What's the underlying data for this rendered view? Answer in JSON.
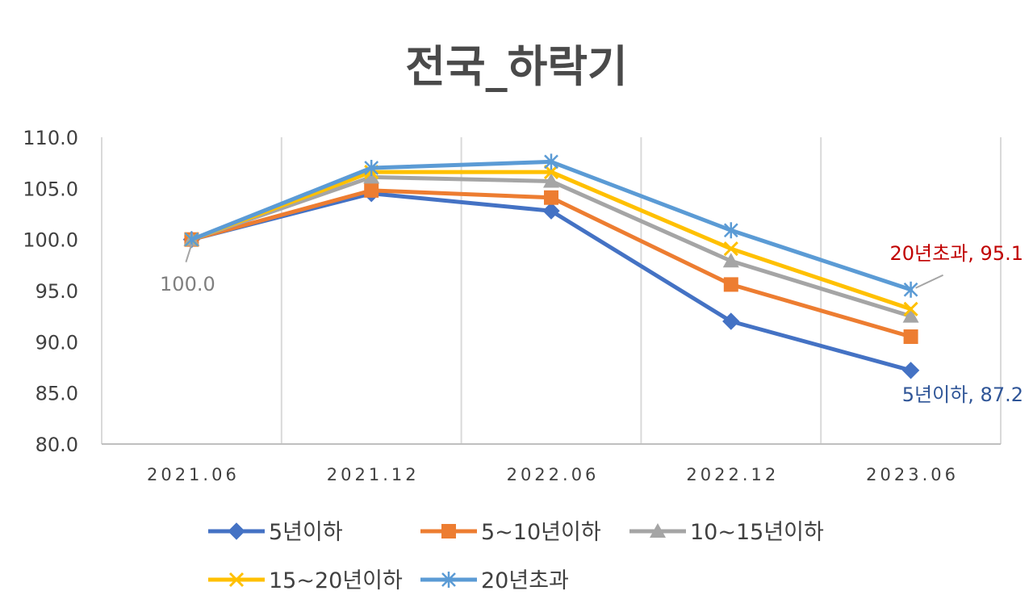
{
  "chart_data": {
    "type": "line",
    "title": "전국_하락기",
    "categories": [
      "2021.06",
      "2021.12",
      "2022.06",
      "2022.12",
      "2023.06"
    ],
    "ylim": [
      80,
      110
    ],
    "yticks": [
      "80.0",
      "85.0",
      "90.0",
      "95.0",
      "100.0",
      "105.0",
      "110.0"
    ],
    "grid": "vertical",
    "legend_position": "bottom",
    "series": [
      {
        "name": "5년이하",
        "color": "#4472C4",
        "marker": "diamond",
        "values": [
          100.0,
          104.5,
          102.8,
          92.0,
          87.2
        ]
      },
      {
        "name": "5~10년이하",
        "color": "#ED7D31",
        "marker": "square",
        "values": [
          100.0,
          104.8,
          104.1,
          95.6,
          90.5
        ]
      },
      {
        "name": "10~15년이하",
        "color": "#A5A5A5",
        "marker": "triangle",
        "values": [
          100.0,
          106.1,
          105.7,
          97.9,
          92.5
        ]
      },
      {
        "name": "15~20년이하",
        "color": "#FFC000",
        "marker": "x",
        "values": [
          100.0,
          106.6,
          106.6,
          99.1,
          93.2
        ]
      },
      {
        "name": "20년초과",
        "color": "#5B9BD5",
        "marker": "asterisk",
        "values": [
          100.0,
          107.0,
          107.6,
          100.9,
          95.1
        ]
      }
    ],
    "annotations": [
      {
        "text": "100.0",
        "color": "#7F7F7F"
      },
      {
        "text": "20년초과, 95.1",
        "color": "#C00000"
      },
      {
        "text": "5년이하, 87.2",
        "color": "#2F5597"
      }
    ]
  }
}
